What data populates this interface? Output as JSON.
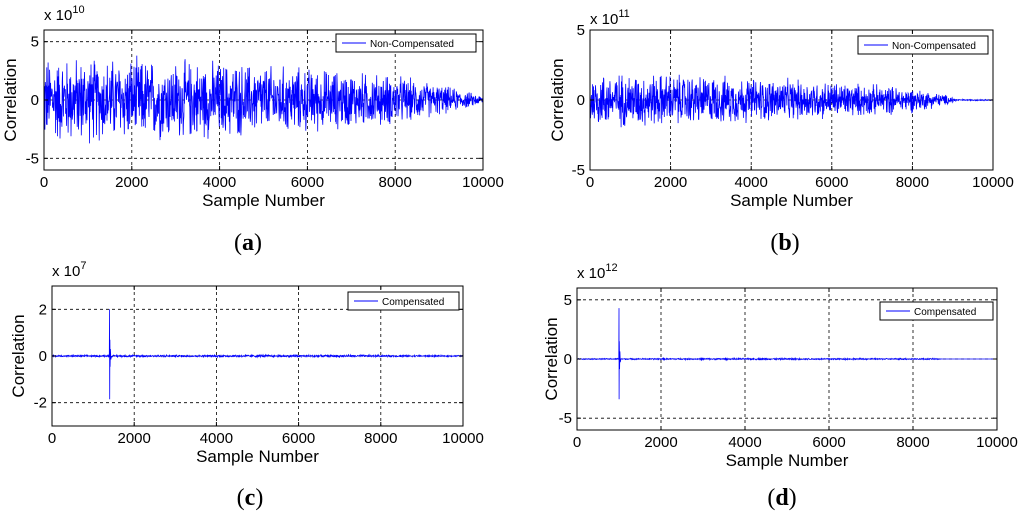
{
  "chart_data": [
    {
      "type": "line",
      "panel_label": "a",
      "xlabel": "Sample Number",
      "ylabel": "Correlation",
      "exponent_base": "x 10",
      "exponent_power": "10",
      "xlim": [
        0,
        10000
      ],
      "ylim": [
        -6,
        6
      ],
      "xticks": [
        0,
        2000,
        4000,
        6000,
        8000,
        10000
      ],
      "yticks": [
        -5,
        0,
        5
      ],
      "grid": true,
      "legend_position": "top-right",
      "series": [
        {
          "name": "Non-Compensated",
          "color": "#0000ff",
          "signal": "dense noise",
          "amplitude_envelope": [
            [
              0,
              4.2
            ],
            [
              2000,
              4.0
            ],
            [
              4000,
              3.7
            ],
            [
              6000,
              3.1
            ],
            [
              8000,
              2.4
            ],
            [
              9000,
              1.5
            ],
            [
              10000,
              0.4
            ]
          ],
          "peak": null
        }
      ]
    },
    {
      "type": "line",
      "panel_label": "b",
      "xlabel": "Sample Number",
      "ylabel": "Correlation",
      "exponent_base": "x 10",
      "exponent_power": "11",
      "xlim": [
        0,
        10000
      ],
      "ylim": [
        -5,
        5
      ],
      "xticks": [
        0,
        2000,
        4000,
        6000,
        8000,
        10000
      ],
      "yticks": [
        -5,
        0,
        5
      ],
      "grid": true,
      "legend_position": "top-right",
      "series": [
        {
          "name": "Non-Compensated",
          "color": "#0000ff",
          "signal": "dense noise",
          "amplitude_envelope": [
            [
              0,
              2.2
            ],
            [
              2000,
              2.1
            ],
            [
              4000,
              1.8
            ],
            [
              6000,
              1.5
            ],
            [
              8000,
              1.0
            ],
            [
              9000,
              0.3
            ],
            [
              9100,
              0.05
            ],
            [
              10000,
              0.05
            ]
          ],
          "peak": null
        }
      ]
    },
    {
      "type": "line",
      "panel_label": "c",
      "xlabel": "Sample Number",
      "ylabel": "Correlation",
      "exponent_base": "x 10",
      "exponent_power": "7",
      "xlim": [
        0,
        10000
      ],
      "ylim": [
        -3,
        3
      ],
      "xticks": [
        0,
        2000,
        4000,
        6000,
        8000,
        10000
      ],
      "yticks": [
        -2,
        0,
        2
      ],
      "grid": true,
      "legend_position": "top-right",
      "series": [
        {
          "name": "Compensated",
          "color": "#0000ff",
          "signal": "low noise with spike",
          "amplitude_envelope": [
            [
              0,
              0.04
            ],
            [
              2000,
              0.05
            ],
            [
              6000,
              0.06
            ],
            [
              8000,
              0.05
            ],
            [
              10000,
              0.03
            ]
          ],
          "peak": {
            "x": 1400,
            "max": 2.0,
            "min": -1.85
          }
        }
      ]
    },
    {
      "type": "line",
      "panel_label": "d",
      "xlabel": "Sample Number",
      "ylabel": "Correlation",
      "exponent_base": "x 10",
      "exponent_power": "12",
      "xlim": [
        0,
        10000
      ],
      "ylim": [
        -6,
        6
      ],
      "xticks": [
        0,
        2000,
        4000,
        6000,
        8000,
        10000
      ],
      "yticks": [
        -5,
        0,
        5
      ],
      "grid": true,
      "legend_position": "top-right",
      "series": [
        {
          "name": "Compensated",
          "color": "#0000ff",
          "signal": "low noise with spike",
          "amplitude_envelope": [
            [
              0,
              0.05
            ],
            [
              4000,
              0.08
            ],
            [
              8000,
              0.07
            ],
            [
              8600,
              0.06
            ],
            [
              8700,
              0.0
            ],
            [
              10000,
              0.0
            ]
          ],
          "peak": {
            "x": 1000,
            "max": 4.3,
            "min": -3.4
          }
        }
      ]
    }
  ]
}
